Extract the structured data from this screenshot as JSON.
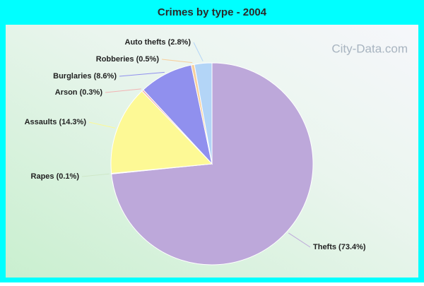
{
  "chart_data": {
    "type": "pie",
    "title": "Crimes by type - 2004",
    "values": [
      73.4,
      0.1,
      14.3,
      0.3,
      8.6,
      0.5,
      2.8
    ],
    "value_labels": [
      "Thefts (73.4%)",
      "Rapes (0.1%)",
      "Assaults (14.3%)",
      "Arson (0.3%)",
      "Burglaries (8.6%)",
      "Robberies (0.5%)",
      "Auto thefts (2.8%)"
    ],
    "colors": [
      "#bda8da",
      "#cfe8c8",
      "#fdf995",
      "#f2b3b3",
      "#9090ee",
      "#f7cf9c",
      "#b3d5f7"
    ],
    "watermark": "City-Data.com"
  }
}
